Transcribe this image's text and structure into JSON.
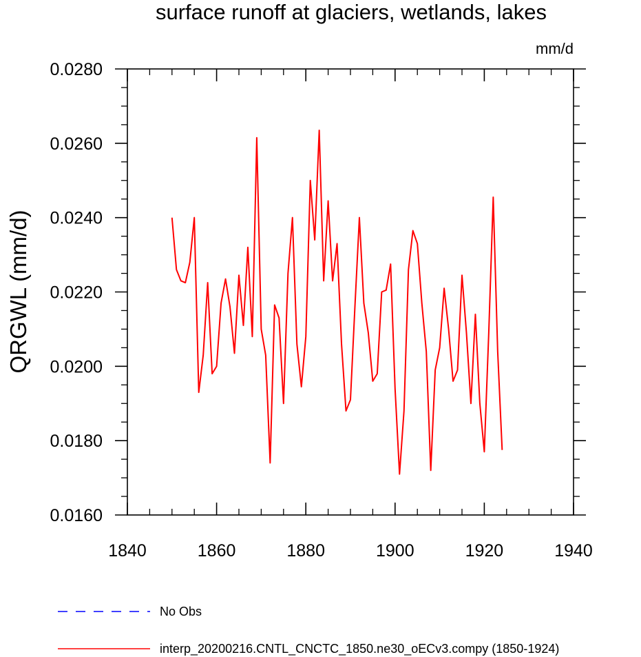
{
  "chart_data": {
    "type": "line",
    "title": "surface runoff at glaciers, wetlands, lakes",
    "units_label": "mm/d",
    "ylabel": "QRGWL  (mm/d)",
    "xlabel": "",
    "xlim": [
      1840,
      1940
    ],
    "ylim": [
      0.016,
      0.028
    ],
    "x_ticks": [
      1840,
      1860,
      1880,
      1900,
      1920,
      1940
    ],
    "x_tick_labels": [
      "1840",
      "1860",
      "1880",
      "1900",
      "1920",
      "1940"
    ],
    "y_ticks": [
      0.016,
      0.018,
      0.02,
      0.022,
      0.024,
      0.026,
      0.028
    ],
    "y_tick_labels": [
      "0.0160",
      "0.0180",
      "0.0200",
      "0.0220",
      "0.0240",
      "0.0260",
      "0.0280"
    ],
    "grid": false,
    "legend_position": "bottom-left",
    "series": [
      {
        "name": "No Obs",
        "color": "#0000ff",
        "dash": "dashed",
        "x": [],
        "values": []
      },
      {
        "name": "interp_20200216.CNTL_CNCTC_1850.ne30_oECv3.compy (1850-1924)",
        "color": "#ff0000",
        "dash": "solid",
        "x": [
          1850,
          1851,
          1852,
          1853,
          1854,
          1855,
          1856,
          1857,
          1858,
          1859,
          1860,
          1861,
          1862,
          1863,
          1864,
          1865,
          1866,
          1867,
          1868,
          1869,
          1870,
          1871,
          1872,
          1873,
          1874,
          1875,
          1876,
          1877,
          1878,
          1879,
          1880,
          1881,
          1882,
          1883,
          1884,
          1885,
          1886,
          1887,
          1888,
          1889,
          1890,
          1891,
          1892,
          1893,
          1894,
          1895,
          1896,
          1897,
          1898,
          1899,
          1900,
          1901,
          1902,
          1903,
          1904,
          1905,
          1906,
          1907,
          1908,
          1909,
          1910,
          1911,
          1912,
          1913,
          1914,
          1915,
          1916,
          1917,
          1918,
          1919,
          1920,
          1921,
          1922,
          1923,
          1924
        ],
        "values": [
          0.024,
          0.0226,
          0.0223,
          0.02225,
          0.0228,
          0.024,
          0.0193,
          0.0203,
          0.02225,
          0.0198,
          0.02,
          0.0217,
          0.02235,
          0.0216,
          0.02035,
          0.02245,
          0.0211,
          0.0232,
          0.0208,
          0.02615,
          0.021,
          0.0203,
          0.0174,
          0.02165,
          0.0213,
          0.019,
          0.0225,
          0.024,
          0.0206,
          0.01945,
          0.0208,
          0.025,
          0.0234,
          0.02635,
          0.0223,
          0.02445,
          0.0223,
          0.0233,
          0.0206,
          0.0188,
          0.0191,
          0.0216,
          0.024,
          0.0217,
          0.0209,
          0.0196,
          0.0198,
          0.022,
          0.02205,
          0.02275,
          0.0194,
          0.0171,
          0.0188,
          0.0226,
          0.02365,
          0.0233,
          0.0217,
          0.0204,
          0.0172,
          0.0199,
          0.0205,
          0.0221,
          0.021,
          0.0196,
          0.0199,
          0.02245,
          0.0209,
          0.019,
          0.0214,
          0.019,
          0.0177,
          0.0209,
          0.02455,
          0.0204,
          0.01775
        ]
      }
    ]
  }
}
